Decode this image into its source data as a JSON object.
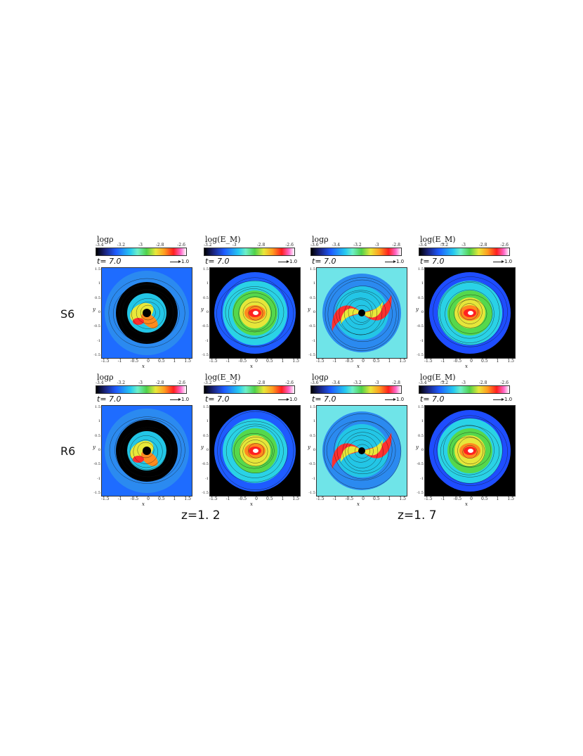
{
  "rows": [
    {
      "label": "S6"
    },
    {
      "label": "R6"
    }
  ],
  "captions": [
    "z=1. 2",
    "z=1. 7"
  ],
  "panels": [
    {
      "quantity": "logρ",
      "ticks": [
        "-3.4",
        "-3.2",
        "-3",
        "-2.8",
        "-2.6"
      ],
      "time": "t= 7.0",
      "vector": "1.0",
      "yticks": [
        "1.5",
        "1",
        "0.5",
        "0",
        "-0.5",
        "-1",
        "-1.5"
      ],
      "xticks": [
        "-1.5",
        "-1",
        "-0.5",
        "0",
        "0.5",
        "1",
        "1.5"
      ],
      "xlabel": "x",
      "ylabel": "y",
      "style": "spiral-ring"
    },
    {
      "quantity": "log(E_M)",
      "ticks": [
        "-3.2",
        "-3",
        "-2.8",
        "-2.6"
      ],
      "time": "t= 7.0",
      "vector": "1.0",
      "yticks": [
        "1.5",
        "1",
        "0.5",
        "0",
        "-0.5",
        "-1",
        "-1.5"
      ],
      "xticks": [
        "-1.5",
        "-1",
        "-0.5",
        "0",
        "0.5",
        "1",
        "1.5"
      ],
      "xlabel": "x",
      "ylabel": "y",
      "style": "disk"
    },
    {
      "quantity": "logρ",
      "ticks": [
        "-3.6",
        "-3.4",
        "-3.2",
        "-3",
        "-2.8"
      ],
      "time": "t= 7.0",
      "vector": "1.0",
      "yticks": [
        "1.5",
        "1",
        "0.5",
        "0",
        "-0.5",
        "-1",
        "-1.5"
      ],
      "xticks": [
        "-1.5",
        "-1",
        "-0.5",
        "0",
        "0.5",
        "1",
        "1.5"
      ],
      "xlabel": "x",
      "ylabel": "y",
      "style": "spiral-arms"
    },
    {
      "quantity": "log(E_M)",
      "ticks": [
        "-3.4",
        "-3.2",
        "-3",
        "-2.8",
        "-2.6"
      ],
      "time": "t= 7.0",
      "vector": "1.0",
      "yticks": [
        "1.5",
        "1",
        "0.5",
        "0",
        "-0.5",
        "-1",
        "-1.5"
      ],
      "xticks": [
        "-1.5",
        "-1",
        "-0.5",
        "0",
        "0.5",
        "1",
        "1.5"
      ],
      "xlabel": "x",
      "ylabel": "y",
      "style": "disk-blue"
    },
    {
      "quantity": "logρ",
      "ticks": [
        "-3.4",
        "-3.2",
        "-3",
        "-2.8",
        "-2.6"
      ],
      "time": "t= 7.0",
      "vector": "1.0",
      "yticks": [
        "1.5",
        "1",
        "0.5",
        "0",
        "-0.5",
        "-1",
        "-1.5"
      ],
      "xticks": [
        "-1.5",
        "-1",
        "-0.5",
        "0",
        "0.5",
        "1",
        "1.5"
      ],
      "xlabel": "x",
      "ylabel": "y",
      "style": "spiral-ring"
    },
    {
      "quantity": "log(E_M)",
      "ticks": [
        "-3.2",
        "-3",
        "-2.8",
        "-2.6"
      ],
      "time": "t= 7.0",
      "vector": "1.0",
      "yticks": [
        "1.5",
        "1",
        "0.5",
        "0",
        "-0.5",
        "-1",
        "-1.5"
      ],
      "xticks": [
        "-1.5",
        "-1",
        "-0.5",
        "0",
        "0.5",
        "1",
        "1.5"
      ],
      "xlabel": "x",
      "ylabel": "y",
      "style": "disk"
    },
    {
      "quantity": "logρ",
      "ticks": [
        "-3.6",
        "-3.4",
        "-3.2",
        "-3",
        "-2.8"
      ],
      "time": "t= 7.0",
      "vector": "1.0",
      "yticks": [
        "1.5",
        "1",
        "0.5",
        "0",
        "-0.5",
        "-1",
        "-1.5"
      ],
      "xticks": [
        "-1.5",
        "-1",
        "-0.5",
        "0",
        "0.5",
        "1",
        "1.5"
      ],
      "xlabel": "x",
      "ylabel": "y",
      "style": "spiral-arms"
    },
    {
      "quantity": "log(E_M)",
      "ticks": [
        "-3.4",
        "-3.2",
        "-3",
        "-2.8",
        "-2.6"
      ],
      "time": "t= 7.0",
      "vector": "1.0",
      "yticks": [
        "1.5",
        "1",
        "0.5",
        "0",
        "-0.5",
        "-1",
        "-1.5"
      ],
      "xticks": [
        "-1.5",
        "-1",
        "-0.5",
        "0",
        "0.5",
        "1",
        "1.5"
      ],
      "xlabel": "x",
      "ylabel": "y",
      "style": "disk-blue"
    }
  ]
}
